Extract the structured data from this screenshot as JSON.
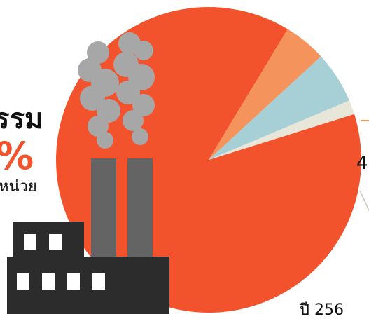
{
  "colors": {
    "industry": "#f2532d",
    "slice_orange": "#f5935c",
    "slice_blue": "#a6d0d6",
    "slice_cream": "#e8e6d8",
    "smoke": "#a7a7a7",
    "chimney": "#646464",
    "factory": "#2c2c2c",
    "window": "#ffffff"
  },
  "labels": {
    "title_fragment": "รรม",
    "percent_fragment": "%",
    "unit_fragment": "หน่วย",
    "year_fragment": "ปี 256",
    "right_fragment": "4"
  },
  "icon": "factory-icon",
  "chart_data": {
    "type": "pie",
    "slices": [
      {
        "value": 88.5,
        "color": "#f2532d"
      },
      {
        "value": 4.5,
        "color": "#f5935c"
      },
      {
        "value": 5.5,
        "color": "#a6d0d6"
      },
      {
        "value": 1.5,
        "color": "#e8e6d8"
      }
    ]
  }
}
